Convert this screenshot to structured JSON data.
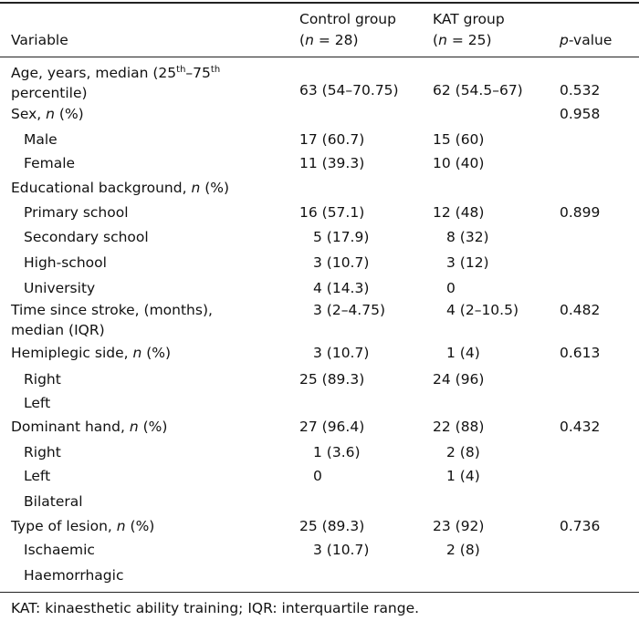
{
  "header": {
    "variable": "Variable",
    "control_title": "Control group",
    "control_n": "(n = 28)",
    "kat_title": "KAT group",
    "kat_n": "(n = 25)",
    "pvalue": "p-value"
  },
  "rows": [
    {
      "label": "Age, years, median (25th–75th percentile)",
      "control": "63 (54–70.75)",
      "kat": "62 (54.5–67)",
      "p": "0.532"
    },
    {
      "label": "Sex, n (%)",
      "control": "",
      "kat": "",
      "p": "0.958"
    },
    {
      "label": "Male",
      "control": "17 (60.7)",
      "kat": "15 (60)",
      "p": ""
    },
    {
      "label": "Female",
      "control": "11 (39.3)",
      "kat": "10 (40)",
      "p": ""
    },
    {
      "label": "Educational background, n (%)",
      "control": "",
      "kat": "",
      "p": ""
    },
    {
      "label": "Primary school",
      "control": "16 (57.1)",
      "kat": "12 (48)",
      "p": "0.899"
    },
    {
      "label": "Secondary school",
      "control": "5 (17.9)",
      "kat": "8 (32)",
      "p": ""
    },
    {
      "label": "High-school",
      "control": "3 (10.7)",
      "kat": "3 (12)",
      "p": ""
    },
    {
      "label": "University",
      "control": "4 (14.3)",
      "kat": "0",
      "p": ""
    },
    {
      "label": "Time since stroke, (months), median (IQR)",
      "control": "3 (2–4.75)",
      "kat": "4 (2–10.5)",
      "p": "0.482"
    },
    {
      "label": "Hemiplegic side, n (%)",
      "control": "3 (10.7)",
      "kat": "1 (4)",
      "p": "0.613"
    },
    {
      "label": "Right",
      "control": "25 (89.3)",
      "kat": "24 (96)",
      "p": ""
    },
    {
      "label": "Left",
      "control": "",
      "kat": "",
      "p": ""
    },
    {
      "label": "Dominant hand, n (%)",
      "control": "27 (96.4)",
      "kat": "22 (88)",
      "p": "0.432"
    },
    {
      "label": "Right",
      "control": "1 (3.6)",
      "kat": "2 (8)",
      "p": ""
    },
    {
      "label": "Left",
      "control": "0",
      "kat": "1 (4)",
      "p": ""
    },
    {
      "label": "Bilateral",
      "control": "",
      "kat": "",
      "p": ""
    },
    {
      "label": "Type of lesion, n (%)",
      "control": "25 (89.3)",
      "kat": "23 (92)",
      "p": "0.736"
    },
    {
      "label": "Ischaemic",
      "control": "3 (10.7)",
      "kat": "2 (8)",
      "p": ""
    },
    {
      "label": "Haemorrhagic",
      "control": "",
      "kat": "",
      "p": ""
    }
  ],
  "footnote": "KAT: kinaesthetic ability training; IQR: interquartile range."
}
